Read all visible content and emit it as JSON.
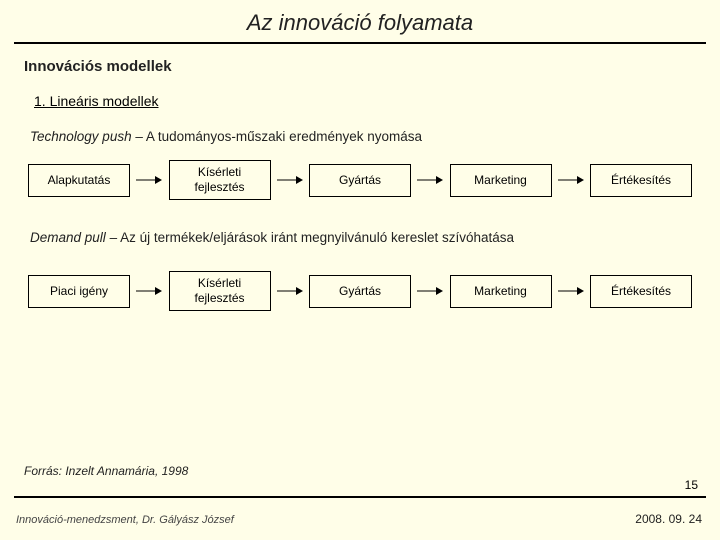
{
  "title": "Az innováció folyamata",
  "subtitle": "Innovációs modellek",
  "section_heading": "1. Lineáris modellek",
  "model1": {
    "label_em": "Technology push",
    "label_rest": "– A tudományos-műszaki eredmények nyomása",
    "nodes": [
      "Alapkutatás",
      "Kísérleti\nfejlesztés",
      "Gyártás",
      "Marketing",
      "Értékesítés"
    ]
  },
  "model2": {
    "label_em": "Demand pull",
    "label_rest": " – Az új termékek/eljárások iránt megnyilvánuló kereslet szívóhatása",
    "nodes": [
      "Piaci igény",
      "Kísérleti\nfejlesztés",
      "Gyártás",
      "Marketing",
      "Értékesítés"
    ]
  },
  "source": "Forrás: Inzelt Annamária, 1998",
  "slide_number": "15",
  "footer_left": "Innováció-menedzsment, Dr. Gályász József",
  "footer_right": "2008. 09. 24",
  "colors": {
    "background": "#fffee8",
    "text": "#222222",
    "rule": "#000000",
    "node_border": "#000000"
  }
}
